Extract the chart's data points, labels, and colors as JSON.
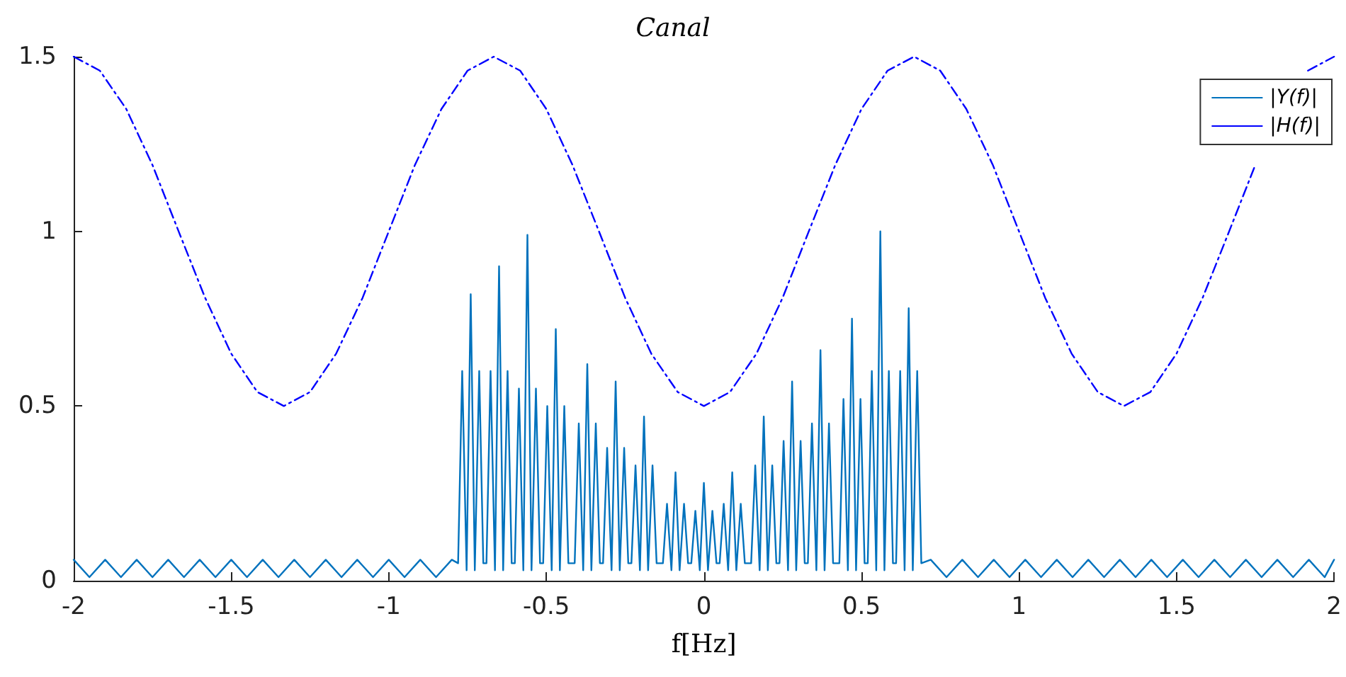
{
  "chart_data": {
    "type": "line",
    "title": "Canal",
    "xlabel": "f[Hz]",
    "xlim": [
      -2,
      2
    ],
    "xticks": [
      -2,
      -1.5,
      -1,
      -0.5,
      0,
      0.5,
      1,
      1.5,
      2
    ],
    "ylim": [
      0,
      1.5
    ],
    "yticks": [
      0,
      0.5,
      1,
      1.5
    ],
    "grid": false,
    "legend": "top right",
    "marker": "none",
    "series": [
      {
        "name": "|Y(f)|",
        "color": "#0072bd",
        "line_style": "solid",
        "x": [
          -2,
          -1.95,
          -1.9,
          -1.85,
          -1.8,
          -1.75,
          -1.7,
          -1.65,
          -1.6,
          -1.55,
          -1.5,
          -1.45,
          -1.4,
          -1.35,
          -1.3,
          -1.25,
          -1.2,
          -1.15,
          -1.1,
          -1.05,
          -1,
          -0.95,
          -0.9,
          -0.85,
          -0.8,
          -0.78,
          -0.767,
          -0.753,
          -0.74,
          -0.727,
          -0.713,
          -0.7,
          -0.69,
          -0.677,
          -0.663,
          -0.65,
          -0.637,
          -0.623,
          -0.61,
          -0.6,
          -0.587,
          -0.573,
          -0.56,
          -0.547,
          -0.533,
          -0.52,
          -0.51,
          -0.497,
          -0.483,
          -0.47,
          -0.457,
          -0.443,
          -0.43,
          -0.41,
          -0.397,
          -0.383,
          -0.37,
          -0.357,
          -0.343,
          -0.33,
          -0.32,
          -0.307,
          -0.293,
          -0.28,
          -0.267,
          -0.253,
          -0.24,
          -0.23,
          -0.217,
          -0.203,
          -0.19,
          -0.177,
          -0.163,
          -0.15,
          -0.13,
          -0.117,
          -0.103,
          -0.09,
          -0.077,
          -0.063,
          -0.05,
          -0.04,
          -0.027,
          -0.013,
          0,
          0.013,
          0.027,
          0.04,
          0.05,
          0.063,
          0.077,
          0.09,
          0.103,
          0.117,
          0.13,
          0.15,
          0.163,
          0.177,
          0.19,
          0.203,
          0.217,
          0.23,
          0.24,
          0.253,
          0.267,
          0.28,
          0.293,
          0.307,
          0.32,
          0.33,
          0.343,
          0.357,
          0.37,
          0.383,
          0.397,
          0.41,
          0.43,
          0.443,
          0.457,
          0.47,
          0.483,
          0.497,
          0.51,
          0.52,
          0.533,
          0.547,
          0.56,
          0.573,
          0.587,
          0.6,
          0.61,
          0.623,
          0.637,
          0.65,
          0.663,
          0.677,
          0.69,
          0.72,
          0.77,
          0.82,
          0.87,
          0.92,
          0.97,
          1.02,
          1.07,
          1.12,
          1.17,
          1.22,
          1.27,
          1.32,
          1.37,
          1.42,
          1.47,
          1.52,
          1.57,
          1.62,
          1.67,
          1.72,
          1.77,
          1.82,
          1.87,
          1.92,
          1.97,
          2
        ],
        "values": [
          0.06,
          0.01,
          0.06,
          0.01,
          0.06,
          0.01,
          0.06,
          0.01,
          0.06,
          0.01,
          0.06,
          0.01,
          0.06,
          0.01,
          0.06,
          0.01,
          0.06,
          0.01,
          0.06,
          0.01,
          0.06,
          0.01,
          0.06,
          0.01,
          0.06,
          0.05,
          0.6,
          0.03,
          0.82,
          0.03,
          0.6,
          0.05,
          0.05,
          0.6,
          0.03,
          0.9,
          0.03,
          0.6,
          0.05,
          0.05,
          0.55,
          0.03,
          0.99,
          0.03,
          0.55,
          0.05,
          0.05,
          0.5,
          0.03,
          0.72,
          0.03,
          0.5,
          0.05,
          0.05,
          0.45,
          0.03,
          0.62,
          0.03,
          0.45,
          0.05,
          0.05,
          0.38,
          0.03,
          0.57,
          0.03,
          0.38,
          0.05,
          0.05,
          0.33,
          0.03,
          0.47,
          0.03,
          0.33,
          0.05,
          0.05,
          0.22,
          0.03,
          0.31,
          0.03,
          0.22,
          0.05,
          0.05,
          0.2,
          0.03,
          0.28,
          0.03,
          0.2,
          0.05,
          0.05,
          0.22,
          0.03,
          0.31,
          0.03,
          0.22,
          0.05,
          0.05,
          0.33,
          0.03,
          0.47,
          0.03,
          0.33,
          0.05,
          0.05,
          0.4,
          0.03,
          0.57,
          0.03,
          0.4,
          0.05,
          0.05,
          0.45,
          0.03,
          0.66,
          0.03,
          0.45,
          0.05,
          0.05,
          0.52,
          0.03,
          0.75,
          0.03,
          0.52,
          0.05,
          0.05,
          0.6,
          0.03,
          1.0,
          0.03,
          0.6,
          0.05,
          0.05,
          0.6,
          0.03,
          0.78,
          0.03,
          0.6,
          0.05,
          0.06,
          0.01,
          0.06,
          0.01,
          0.06,
          0.01,
          0.06,
          0.01,
          0.06,
          0.01,
          0.06,
          0.01,
          0.06,
          0.01,
          0.06,
          0.01,
          0.06,
          0.01,
          0.06,
          0.01,
          0.06,
          0.01,
          0.06,
          0.01,
          0.06,
          0.01,
          0.06
        ]
      },
      {
        "name": "|H(f)|",
        "color": "#0000ff",
        "line_style": "dashdot",
        "x": [
          -2,
          -1.917,
          -1.833,
          -1.75,
          -1.667,
          -1.583,
          -1.5,
          -1.417,
          -1.333,
          -1.25,
          -1.167,
          -1.083,
          -1,
          -0.917,
          -0.833,
          -0.75,
          -0.667,
          -0.583,
          -0.5,
          -0.417,
          -0.333,
          -0.25,
          -0.167,
          -0.083,
          0,
          0.083,
          0.167,
          0.25,
          0.333,
          0.417,
          0.5,
          0.583,
          0.667,
          0.75,
          0.833,
          0.917,
          1,
          1.083,
          1.167,
          1.25,
          1.333,
          1.417,
          1.5,
          1.583,
          1.667,
          1.75,
          1.833,
          1.917,
          2
        ],
        "values": [
          1.5,
          1.46,
          1.35,
          1.19,
          1.0,
          0.81,
          0.65,
          0.54,
          0.5,
          0.54,
          0.65,
          0.81,
          1.0,
          1.19,
          1.35,
          1.46,
          1.5,
          1.46,
          1.35,
          1.19,
          1.0,
          0.81,
          0.65,
          0.54,
          0.5,
          0.54,
          0.65,
          0.81,
          1.0,
          1.19,
          1.35,
          1.46,
          1.5,
          1.46,
          1.35,
          1.19,
          1.0,
          0.81,
          0.65,
          0.54,
          0.5,
          0.54,
          0.65,
          0.81,
          1.0,
          1.19,
          null,
          1.46,
          1.5
        ]
      }
    ]
  }
}
